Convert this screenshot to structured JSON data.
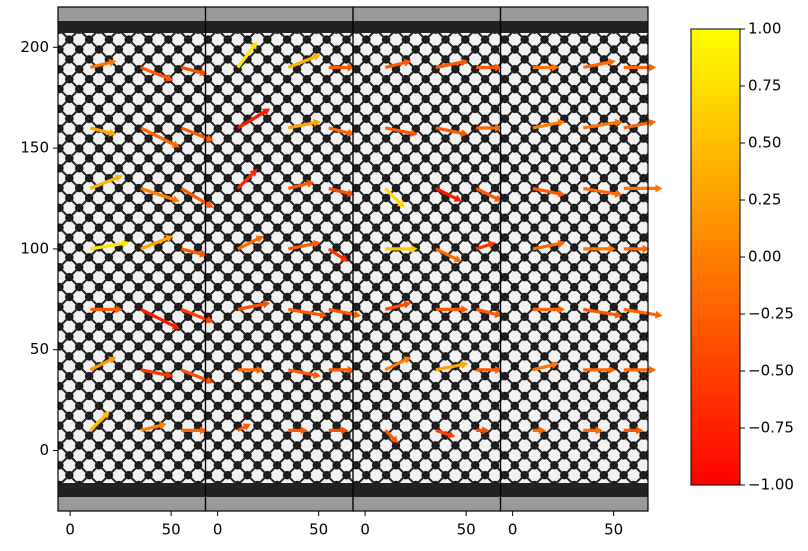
{
  "chart_data": {
    "type": "quiver",
    "colormap": "autumn",
    "xlim": [
      -6,
      67
    ],
    "ylim": [
      -30,
      220
    ],
    "xticks": [
      0,
      50
    ],
    "yticks": [
      0,
      50,
      100,
      150,
      200
    ],
    "clim": [
      -1,
      1
    ],
    "cticks": [
      {
        "value": 1,
        "label": "1.00"
      },
      {
        "value": 0.75,
        "label": "0.75"
      },
      {
        "value": 0.5,
        "label": "0.50"
      },
      {
        "value": 0.25,
        "label": "0.25"
      },
      {
        "value": 0,
        "label": "0.00"
      },
      {
        "value": -0.25,
        "label": "−0.25"
      },
      {
        "value": -0.5,
        "label": "−0.50"
      },
      {
        "value": -0.75,
        "label": "−0.75"
      },
      {
        "value": -1,
        "label": "−1.00"
      }
    ],
    "panels": [
      {
        "x": [
          10,
          35,
          55,
          10,
          35,
          55,
          10,
          35,
          55,
          10,
          35,
          55,
          10,
          35,
          55,
          10,
          35,
          55,
          10,
          35,
          55
        ],
        "y": [
          10,
          10,
          10,
          40,
          40,
          40,
          70,
          70,
          70,
          100,
          100,
          100,
          130,
          130,
          130,
          160,
          160,
          160,
          190,
          190,
          190
        ],
        "u": [
          6,
          8,
          8,
          8,
          10,
          10,
          10,
          12,
          10,
          12,
          10,
          8,
          10,
          12,
          10,
          8,
          12,
          10,
          8,
          10,
          8
        ],
        "v": [
          6,
          2,
          0,
          4,
          -2,
          -4,
          0,
          -6,
          -4,
          2,
          4,
          -2,
          4,
          -4,
          -6,
          -2,
          -6,
          -4,
          2,
          -4,
          -2
        ],
        "c": [
          0.5,
          0,
          -0.2,
          0.2,
          -0.6,
          -0.4,
          -0.3,
          -0.8,
          -0.5,
          0.8,
          0.3,
          -0.3,
          0.4,
          0,
          -0.3,
          0.3,
          -0.2,
          -0.3,
          -0.1,
          -0.3,
          -0.4
        ]
      },
      {
        "x": [
          10,
          35,
          55,
          10,
          35,
          55,
          10,
          35,
          55,
          10,
          35,
          55,
          10,
          35,
          55,
          10,
          35,
          55,
          10,
          35,
          55
        ],
        "y": [
          10,
          10,
          10,
          40,
          40,
          40,
          70,
          70,
          70,
          100,
          100,
          100,
          130,
          130,
          130,
          160,
          160,
          160,
          190,
          190,
          190
        ],
        "u": [
          4,
          6,
          6,
          8,
          10,
          8,
          10,
          12,
          10,
          8,
          10,
          6,
          6,
          8,
          8,
          10,
          10,
          8,
          6,
          10,
          8
        ],
        "v": [
          2,
          0,
          0,
          0,
          -2,
          0,
          2,
          -2,
          -2,
          4,
          2,
          -4,
          6,
          2,
          -2,
          6,
          2,
          -2,
          8,
          4,
          0
        ],
        "c": [
          -0.3,
          -0.3,
          -0.4,
          -0.2,
          -0.3,
          -0.3,
          -0.4,
          -0.3,
          -0.3,
          -0.2,
          -0.3,
          -0.6,
          -0.7,
          -0.3,
          -0.4,
          -0.8,
          0.3,
          -0.2,
          0.8,
          0.4,
          -0.3
        ]
      },
      {
        "x": [
          10,
          35,
          55,
          10,
          35,
          55,
          10,
          35,
          55,
          10,
          35,
          55,
          10,
          35,
          55,
          10,
          35,
          55,
          10,
          35,
          55
        ],
        "y": [
          10,
          10,
          10,
          40,
          40,
          40,
          70,
          70,
          70,
          100,
          100,
          100,
          130,
          130,
          130,
          160,
          160,
          160,
          190,
          190,
          190
        ],
        "u": [
          4,
          6,
          4,
          8,
          10,
          8,
          8,
          10,
          8,
          10,
          8,
          6,
          6,
          8,
          8,
          10,
          10,
          8,
          8,
          10,
          8
        ],
        "v": [
          -4,
          -2,
          0,
          4,
          2,
          0,
          2,
          0,
          -2,
          0,
          -4,
          2,
          -6,
          -4,
          -4,
          -2,
          -2,
          0,
          2,
          2,
          0
        ],
        "c": [
          -0.3,
          -0.5,
          -0.4,
          0,
          0.3,
          -0.3,
          -0.4,
          -0.3,
          -0.3,
          0.6,
          -0.2,
          -0.6,
          0.7,
          -0.8,
          -0.3,
          -0.3,
          -0.3,
          -0.2,
          -0.3,
          -0.3,
          -0.3
        ]
      },
      {
        "x": [
          10,
          35,
          55,
          10,
          35,
          55,
          10,
          35,
          55,
          10,
          35,
          55,
          10,
          35,
          55,
          10,
          35,
          55,
          10,
          35,
          55
        ],
        "y": [
          10,
          10,
          10,
          40,
          40,
          40,
          70,
          70,
          70,
          100,
          100,
          100,
          130,
          130,
          130,
          160,
          160,
          160,
          190,
          190,
          190
        ],
        "u": [
          4,
          6,
          6,
          8,
          10,
          10,
          10,
          12,
          12,
          10,
          10,
          8,
          10,
          12,
          12,
          10,
          12,
          10,
          8,
          10,
          10
        ],
        "v": [
          0,
          0,
          0,
          2,
          0,
          0,
          0,
          -2,
          -2,
          2,
          0,
          0,
          -2,
          -2,
          0,
          2,
          2,
          2,
          0,
          2,
          0
        ],
        "c": [
          -0.2,
          -0.2,
          -0.3,
          -0.1,
          -0.2,
          -0.2,
          -0.2,
          -0.3,
          -0.2,
          -0.2,
          -0.1,
          -0.2,
          -0.3,
          -0.2,
          -0.1,
          0,
          -0.1,
          -0.2,
          -0.1,
          -0.2,
          -0.2
        ]
      }
    ]
  }
}
